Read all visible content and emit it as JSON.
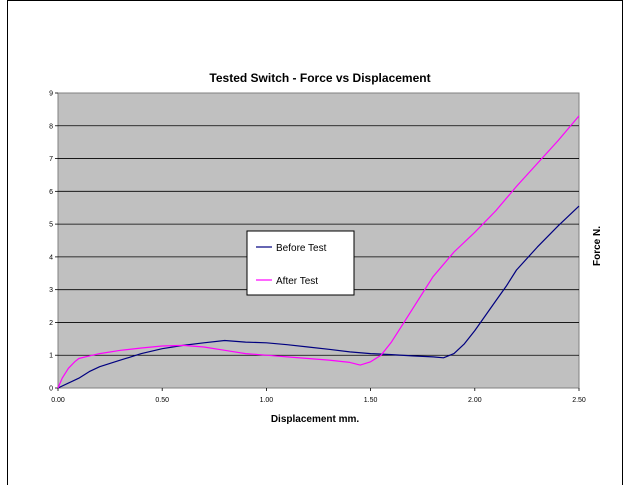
{
  "chart_data": {
    "type": "line",
    "title": "Tested Switch - Force vs Displacement",
    "xlabel": "Displacement mm.",
    "ylabel": "Force N.",
    "xlim": [
      0,
      2.5
    ],
    "ylim": [
      0,
      9
    ],
    "x_ticks": [
      "0.00",
      "0.50",
      "1.00",
      "1.50",
      "2.00",
      "2.50"
    ],
    "y_ticks": [
      "0",
      "1",
      "2",
      "3",
      "4",
      "5",
      "6",
      "7",
      "8",
      "9"
    ],
    "grid": "horizontal",
    "plot_background": "#c0c0c0",
    "legend_position": "center-left",
    "series": [
      {
        "name": "Before Test",
        "color": "#000080",
        "x": [
          0.0,
          0.05,
          0.1,
          0.15,
          0.2,
          0.3,
          0.4,
          0.5,
          0.6,
          0.7,
          0.8,
          0.9,
          1.0,
          1.1,
          1.2,
          1.3,
          1.4,
          1.5,
          1.6,
          1.7,
          1.8,
          1.85,
          1.9,
          1.95,
          2.0,
          2.05,
          2.1,
          2.15,
          2.2,
          2.3,
          2.4,
          2.5
        ],
        "y": [
          0.0,
          0.15,
          0.3,
          0.5,
          0.65,
          0.85,
          1.05,
          1.2,
          1.3,
          1.38,
          1.45,
          1.4,
          1.38,
          1.32,
          1.25,
          1.18,
          1.1,
          1.05,
          1.02,
          0.98,
          0.95,
          0.92,
          1.05,
          1.35,
          1.75,
          2.2,
          2.65,
          3.1,
          3.6,
          4.3,
          4.95,
          5.55
        ]
      },
      {
        "name": "After Test",
        "color": "#ff00ff",
        "x": [
          0.0,
          0.02,
          0.05,
          0.08,
          0.1,
          0.15,
          0.2,
          0.3,
          0.4,
          0.5,
          0.6,
          0.7,
          0.8,
          0.9,
          1.0,
          1.1,
          1.2,
          1.3,
          1.4,
          1.45,
          1.5,
          1.55,
          1.6,
          1.65,
          1.7,
          1.75,
          1.8,
          1.9,
          2.0,
          2.1,
          2.2,
          2.3,
          2.4,
          2.5
        ],
        "y": [
          0.0,
          0.3,
          0.6,
          0.8,
          0.9,
          0.98,
          1.05,
          1.15,
          1.22,
          1.28,
          1.3,
          1.25,
          1.15,
          1.05,
          1.0,
          0.95,
          0.9,
          0.85,
          0.78,
          0.7,
          0.8,
          1.0,
          1.4,
          1.9,
          2.4,
          2.9,
          3.4,
          4.15,
          4.75,
          5.4,
          6.15,
          6.85,
          7.55,
          8.3
        ]
      }
    ]
  }
}
